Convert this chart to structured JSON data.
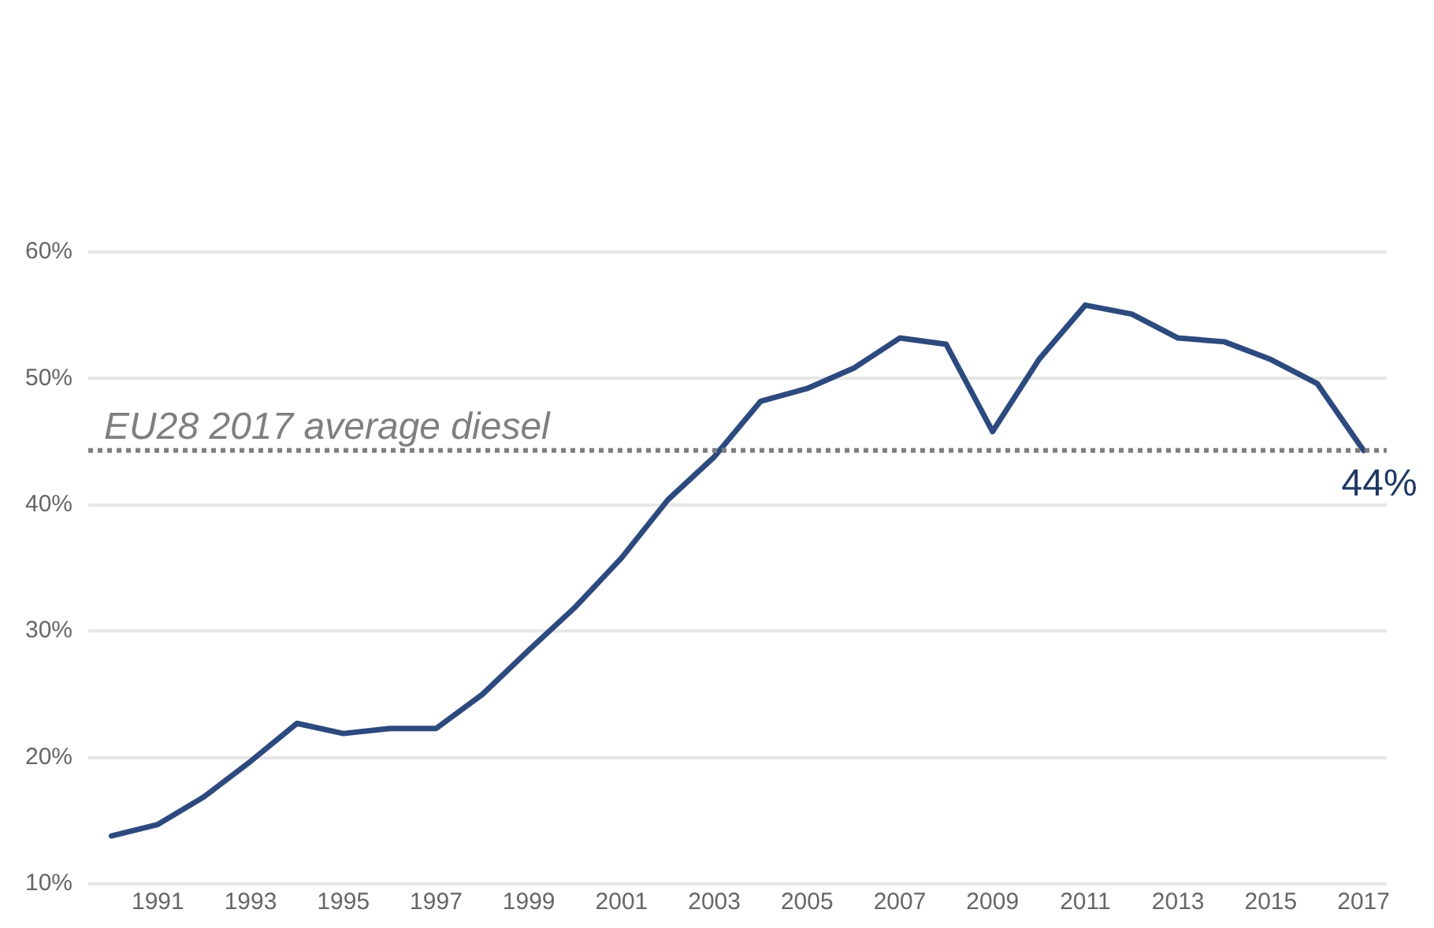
{
  "chart_data": {
    "type": "line",
    "categories": [
      null,
      "1991",
      null,
      "1993",
      null,
      "1995",
      null,
      "1997",
      null,
      "1999",
      null,
      "2001",
      null,
      "2003",
      null,
      "2005",
      null,
      "2007",
      null,
      "2009",
      null,
      "2011",
      null,
      "2013",
      null,
      "2015",
      null,
      "2017"
    ],
    "series": [
      {
        "color": "#2d4a7f",
        "values": [
          13.8,
          14.7,
          16.9,
          19.7,
          22.7,
          21.9,
          22.3,
          22.3,
          25.0,
          28.5,
          31.9,
          35.8,
          40.4,
          43.8,
          48.2,
          49.2,
          50.8,
          53.2,
          52.7,
          45.8,
          51.5,
          55.8,
          55.1,
          53.2,
          52.9,
          51.5,
          49.6,
          44.3
        ],
        "value_labels": [
          null,
          null,
          null,
          null,
          null,
          null,
          null,
          null,
          null,
          null,
          null,
          null,
          null,
          null,
          null,
          null,
          null,
          null,
          null,
          null,
          null,
          null,
          null,
          null,
          null,
          null,
          null,
          "44%"
        ]
      }
    ],
    "ylim": [
      10,
      60
    ],
    "yticks": [
      {
        "value": 10,
        "label": "10%"
      },
      {
        "value": 20,
        "label": "20%"
      },
      {
        "value": 30,
        "label": "30%"
      },
      {
        "value": 40,
        "label": "40%"
      },
      {
        "value": 50,
        "label": "50%"
      },
      {
        "value": 60,
        "label": "60%"
      }
    ],
    "ref_lines": [
      {
        "axis": "y",
        "value": 44.3,
        "label": "EU28 2017 average diesel",
        "color": "#7f7f7f",
        "line_style": "dotted"
      }
    ],
    "grid": "y",
    "legend": false,
    "marker": "none",
    "line_style": "solid"
  }
}
